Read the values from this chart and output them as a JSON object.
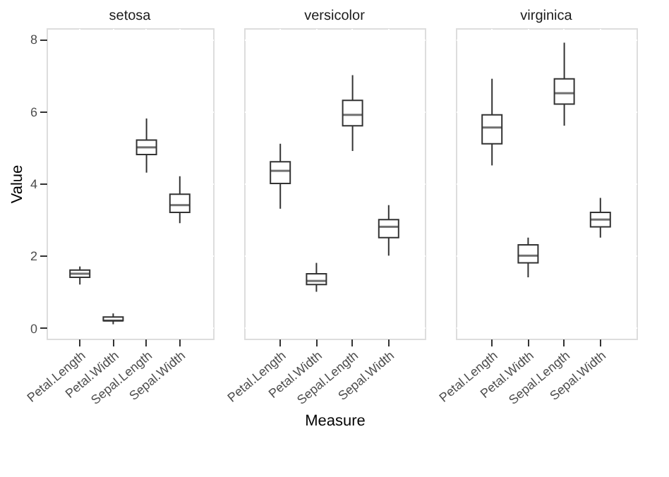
{
  "chart_data": [
    {
      "type": "box",
      "title": "setosa",
      "ylabel": "Value",
      "categories": [
        "Petal.Length",
        "Petal.Width",
        "Sepal.Length",
        "Sepal.Width"
      ],
      "ylim": [
        -0.3,
        8.3
      ],
      "yticks": [
        0,
        2,
        4,
        6,
        8
      ],
      "grid": true,
      "color": "#ffffff",
      "boxes": [
        {
          "low": 1.2,
          "q1": 1.4,
          "median": 1.5,
          "q3": 1.6,
          "high": 1.7
        },
        {
          "low": 0.1,
          "q1": 0.2,
          "median": 0.2,
          "q3": 0.3,
          "high": 0.4
        },
        {
          "low": 4.3,
          "q1": 4.8,
          "median": 5.0,
          "q3": 5.2,
          "high": 5.8
        },
        {
          "low": 2.9,
          "q1": 3.2,
          "median": 3.4,
          "q3": 3.7,
          "high": 4.2
        }
      ]
    },
    {
      "type": "box",
      "title": "versicolor",
      "xlabel": "Measure",
      "categories": [
        "Petal.Length",
        "Petal.Width",
        "Sepal.Length",
        "Sepal.Width"
      ],
      "ylim": [
        -0.3,
        8.3
      ],
      "yticks": [
        0,
        2,
        4,
        6,
        8
      ],
      "grid": true,
      "tick_labels": "x",
      "color": "#ffffff",
      "boxes": [
        {
          "low": 3.3,
          "q1": 4.0,
          "median": 4.35,
          "q3": 4.6,
          "high": 5.1
        },
        {
          "low": 1.0,
          "q1": 1.2,
          "median": 1.3,
          "q3": 1.5,
          "high": 1.8
        },
        {
          "low": 4.9,
          "q1": 5.6,
          "median": 5.9,
          "q3": 6.3,
          "high": 7.0
        },
        {
          "low": 2.0,
          "q1": 2.5,
          "median": 2.8,
          "q3": 3.0,
          "high": 3.4
        }
      ]
    },
    {
      "type": "box",
      "title": "virginica",
      "categories": [
        "Petal.Length",
        "Petal.Width",
        "Sepal.Length",
        "Sepal.Width"
      ],
      "ylim": [
        -0.3,
        8.3
      ],
      "yticks": [
        0,
        2,
        4,
        6,
        8
      ],
      "grid": true,
      "tick_labels": "x",
      "color": "#ffffff",
      "boxes": [
        {
          "low": 4.5,
          "q1": 5.1,
          "median": 5.55,
          "q3": 5.9,
          "high": 6.9
        },
        {
          "low": 1.4,
          "q1": 1.8,
          "median": 2.0,
          "q3": 2.3,
          "high": 2.5
        },
        {
          "low": 5.6,
          "q1": 6.2,
          "median": 6.5,
          "q3": 6.9,
          "high": 7.9
        },
        {
          "low": 2.5,
          "q1": 2.8,
          "median": 3.0,
          "q3": 3.2,
          "high": 3.6
        }
      ]
    }
  ]
}
